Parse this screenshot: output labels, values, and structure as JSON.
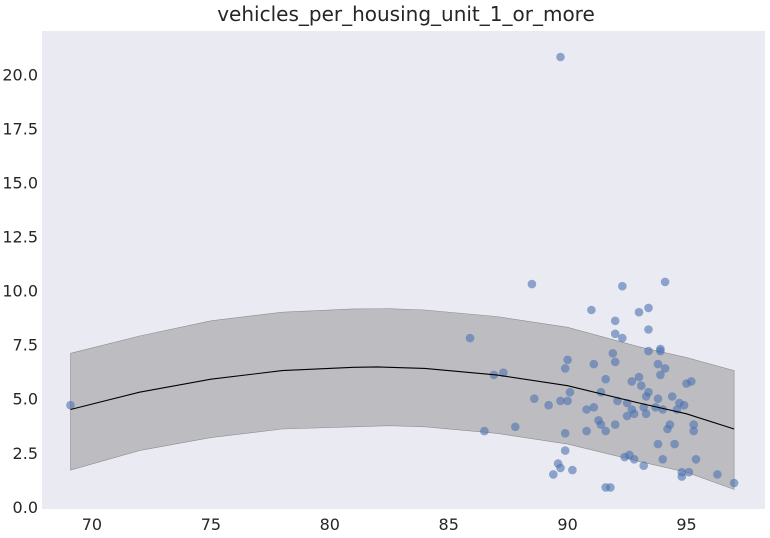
{
  "chart_data": {
    "type": "scatter",
    "title": "vehicles_per_housing_unit_1_or_more",
    "xlabel": "",
    "ylabel": "",
    "xlim": [
      67.9,
      98.3
    ],
    "ylim": [
      -0.1,
      22.0
    ],
    "xticks": [
      "70",
      "75",
      "80",
      "85",
      "90",
      "95"
    ],
    "yticks": [
      "0.0",
      "2.5",
      "5.0",
      "7.5",
      "10.0",
      "12.5",
      "15.0",
      "17.5",
      "20.0"
    ],
    "grid": false,
    "colors": {
      "background": "#eaeaf2",
      "points": "#4c72b0",
      "band": "#a9a9ad",
      "line": "#000000"
    },
    "points": [
      [
        69.1,
        4.7
      ],
      [
        85.9,
        7.8
      ],
      [
        86.5,
        3.5
      ],
      [
        86.9,
        6.1
      ],
      [
        87.3,
        6.2
      ],
      [
        87.8,
        3.7
      ],
      [
        88.5,
        10.3
      ],
      [
        88.6,
        5.0
      ],
      [
        89.2,
        4.7
      ],
      [
        89.4,
        1.5
      ],
      [
        89.6,
        2.0
      ],
      [
        89.7,
        20.8
      ],
      [
        89.7,
        1.8
      ],
      [
        89.7,
        4.9
      ],
      [
        89.9,
        3.4
      ],
      [
        89.9,
        2.6
      ],
      [
        89.9,
        6.4
      ],
      [
        90.0,
        6.8
      ],
      [
        90.0,
        4.9
      ],
      [
        90.1,
        5.3
      ],
      [
        90.2,
        1.7
      ],
      [
        90.8,
        3.5
      ],
      [
        90.8,
        4.5
      ],
      [
        91.0,
        9.1
      ],
      [
        91.1,
        4.6
      ],
      [
        91.1,
        6.6
      ],
      [
        91.3,
        4.0
      ],
      [
        91.4,
        5.3
      ],
      [
        91.4,
        3.8
      ],
      [
        91.6,
        3.5
      ],
      [
        91.6,
        5.9
      ],
      [
        91.6,
        0.9
      ],
      [
        91.8,
        0.9
      ],
      [
        91.9,
        7.1
      ],
      [
        92.0,
        6.7
      ],
      [
        92.0,
        8.0
      ],
      [
        92.0,
        8.6
      ],
      [
        92.0,
        3.8
      ],
      [
        92.1,
        4.9
      ],
      [
        92.3,
        10.2
      ],
      [
        92.3,
        7.8
      ],
      [
        92.4,
        2.3
      ],
      [
        92.5,
        4.8
      ],
      [
        92.5,
        4.2
      ],
      [
        92.6,
        2.4
      ],
      [
        92.7,
        5.8
      ],
      [
        92.7,
        4.5
      ],
      [
        92.8,
        2.2
      ],
      [
        92.8,
        4.3
      ],
      [
        93.0,
        9.0
      ],
      [
        93.0,
        6.0
      ],
      [
        93.1,
        5.6
      ],
      [
        93.2,
        1.9
      ],
      [
        93.2,
        4.6
      ],
      [
        93.3,
        4.3
      ],
      [
        93.3,
        5.1
      ],
      [
        93.4,
        5.3
      ],
      [
        93.4,
        7.2
      ],
      [
        93.4,
        8.2
      ],
      [
        93.4,
        9.2
      ],
      [
        93.7,
        4.6
      ],
      [
        93.8,
        6.6
      ],
      [
        93.8,
        5.0
      ],
      [
        93.8,
        2.9
      ],
      [
        93.9,
        7.3
      ],
      [
        93.9,
        6.1
      ],
      [
        93.9,
        7.2
      ],
      [
        94.0,
        4.5
      ],
      [
        94.0,
        2.2
      ],
      [
        94.1,
        10.4
      ],
      [
        94.1,
        6.4
      ],
      [
        94.2,
        3.6
      ],
      [
        94.3,
        3.8
      ],
      [
        94.4,
        5.1
      ],
      [
        94.5,
        2.9
      ],
      [
        94.6,
        4.5
      ],
      [
        94.7,
        4.8
      ],
      [
        94.8,
        1.4
      ],
      [
        94.8,
        1.6
      ],
      [
        94.9,
        4.7
      ],
      [
        95.0,
        5.7
      ],
      [
        95.1,
        1.6
      ],
      [
        95.2,
        5.8
      ],
      [
        95.3,
        3.8
      ],
      [
        95.3,
        3.5
      ],
      [
        95.4,
        2.2
      ],
      [
        96.3,
        1.5
      ],
      [
        97.0,
        1.1
      ]
    ],
    "fit_curve": {
      "x": [
        69.1,
        72.0,
        75.0,
        78.0,
        81.0,
        82.0,
        84.0,
        87.0,
        90.0,
        93.0,
        95.0,
        97.0
      ],
      "y": [
        4.5,
        5.3,
        5.9,
        6.3,
        6.45,
        6.47,
        6.4,
        6.1,
        5.6,
        4.8,
        4.3,
        3.6
      ]
    },
    "band_upper": {
      "x": [
        69.1,
        72.0,
        75.0,
        78.0,
        81.0,
        82.5,
        84.0,
        87.0,
        90.0,
        93.0,
        95.0,
        97.0
      ],
      "y": [
        7.1,
        7.9,
        8.6,
        9.0,
        9.15,
        9.16,
        9.1,
        8.8,
        8.3,
        7.4,
        6.9,
        6.3
      ]
    },
    "band_lower": {
      "x": [
        69.1,
        72.0,
        75.0,
        78.0,
        81.0,
        82.5,
        84.0,
        87.0,
        90.0,
        93.0,
        95.0,
        97.0
      ],
      "y": [
        1.7,
        2.6,
        3.2,
        3.6,
        3.7,
        3.75,
        3.7,
        3.4,
        2.9,
        2.1,
        1.6,
        0.8
      ]
    }
  }
}
